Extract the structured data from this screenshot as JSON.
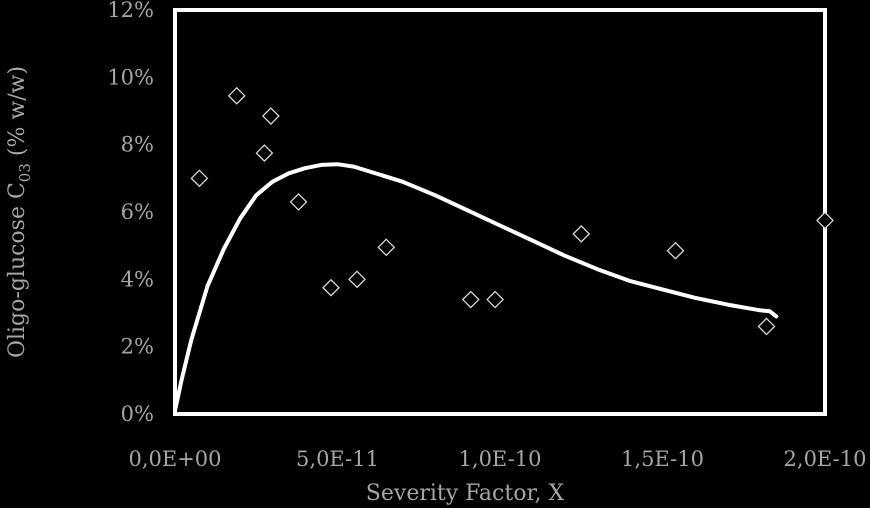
{
  "chart_data": {
    "type": "scatter",
    "xlabel": "Severity Factor, X",
    "ylabel_main": "Oligo-glucose C",
    "ylabel_sub": "03",
    "ylabel_tail": " (% w/w)",
    "xlim": [
      0,
      2e-10
    ],
    "ylim": [
      0,
      12
    ],
    "x_ticks": [
      {
        "value": 0,
        "label": "0,0E+00"
      },
      {
        "value": 5e-11,
        "label": "5,0E-11"
      },
      {
        "value": 1e-10,
        "label": "1,0E-10"
      },
      {
        "value": 1.5e-10,
        "label": "1,5E-10"
      },
      {
        "value": 2e-10,
        "label": "2,0E-10"
      }
    ],
    "y_ticks": [
      {
        "value": 0,
        "label": "0%"
      },
      {
        "value": 2,
        "label": "2%"
      },
      {
        "value": 4,
        "label": "4%"
      },
      {
        "value": 6,
        "label": "6%"
      },
      {
        "value": 8,
        "label": "8%"
      },
      {
        "value": 10,
        "label": "10%"
      },
      {
        "value": 12,
        "label": "12%"
      }
    ],
    "grid": false,
    "series": [
      {
        "kind": "scatter",
        "marker": "diamond-open",
        "points": [
          {
            "x": 7.5e-12,
            "y": 7.0
          },
          {
            "x": 1.9e-11,
            "y": 9.45
          },
          {
            "x": 2.75e-11,
            "y": 7.75
          },
          {
            "x": 2.95e-11,
            "y": 8.85
          },
          {
            "x": 3.8e-11,
            "y": 6.3
          },
          {
            "x": 4.8e-11,
            "y": 3.75
          },
          {
            "x": 5.6e-11,
            "y": 4.0
          },
          {
            "x": 6.5e-11,
            "y": 4.95
          },
          {
            "x": 9.1e-11,
            "y": 3.4
          },
          {
            "x": 9.85e-11,
            "y": 3.4
          },
          {
            "x": 1.25e-10,
            "y": 5.35
          },
          {
            "x": 1.54e-10,
            "y": 4.85
          },
          {
            "x": 1.82e-10,
            "y": 2.6
          },
          {
            "x": 2e-10,
            "y": 5.75
          }
        ]
      },
      {
        "kind": "line",
        "points": [
          {
            "x": 0,
            "y": 0.1
          },
          {
            "x": 2e-12,
            "y": 1.0
          },
          {
            "x": 5e-12,
            "y": 2.2
          },
          {
            "x": 1e-11,
            "y": 3.8
          },
          {
            "x": 1.5e-11,
            "y": 4.9
          },
          {
            "x": 2e-11,
            "y": 5.8
          },
          {
            "x": 2.5e-11,
            "y": 6.5
          },
          {
            "x": 3e-11,
            "y": 6.9
          },
          {
            "x": 3.5e-11,
            "y": 7.15
          },
          {
            "x": 4e-11,
            "y": 7.3
          },
          {
            "x": 4.5e-11,
            "y": 7.4
          },
          {
            "x": 5e-11,
            "y": 7.42
          },
          {
            "x": 5.5e-11,
            "y": 7.35
          },
          {
            "x": 6e-11,
            "y": 7.2
          },
          {
            "x": 7e-11,
            "y": 6.9
          },
          {
            "x": 8e-11,
            "y": 6.5
          },
          {
            "x": 9e-11,
            "y": 6.05
          },
          {
            "x": 1e-10,
            "y": 5.6
          },
          {
            "x": 1.1e-10,
            "y": 5.15
          },
          {
            "x": 1.2e-10,
            "y": 4.7
          },
          {
            "x": 1.3e-10,
            "y": 4.3
          },
          {
            "x": 1.4e-10,
            "y": 3.95
          },
          {
            "x": 1.5e-10,
            "y": 3.7
          },
          {
            "x": 1.6e-10,
            "y": 3.45
          },
          {
            "x": 1.7e-10,
            "y": 3.25
          },
          {
            "x": 1.8e-10,
            "y": 3.08
          },
          {
            "x": 1.83e-10,
            "y": 3.05
          },
          {
            "x": 1.85e-10,
            "y": 2.9
          }
        ]
      }
    ]
  }
}
